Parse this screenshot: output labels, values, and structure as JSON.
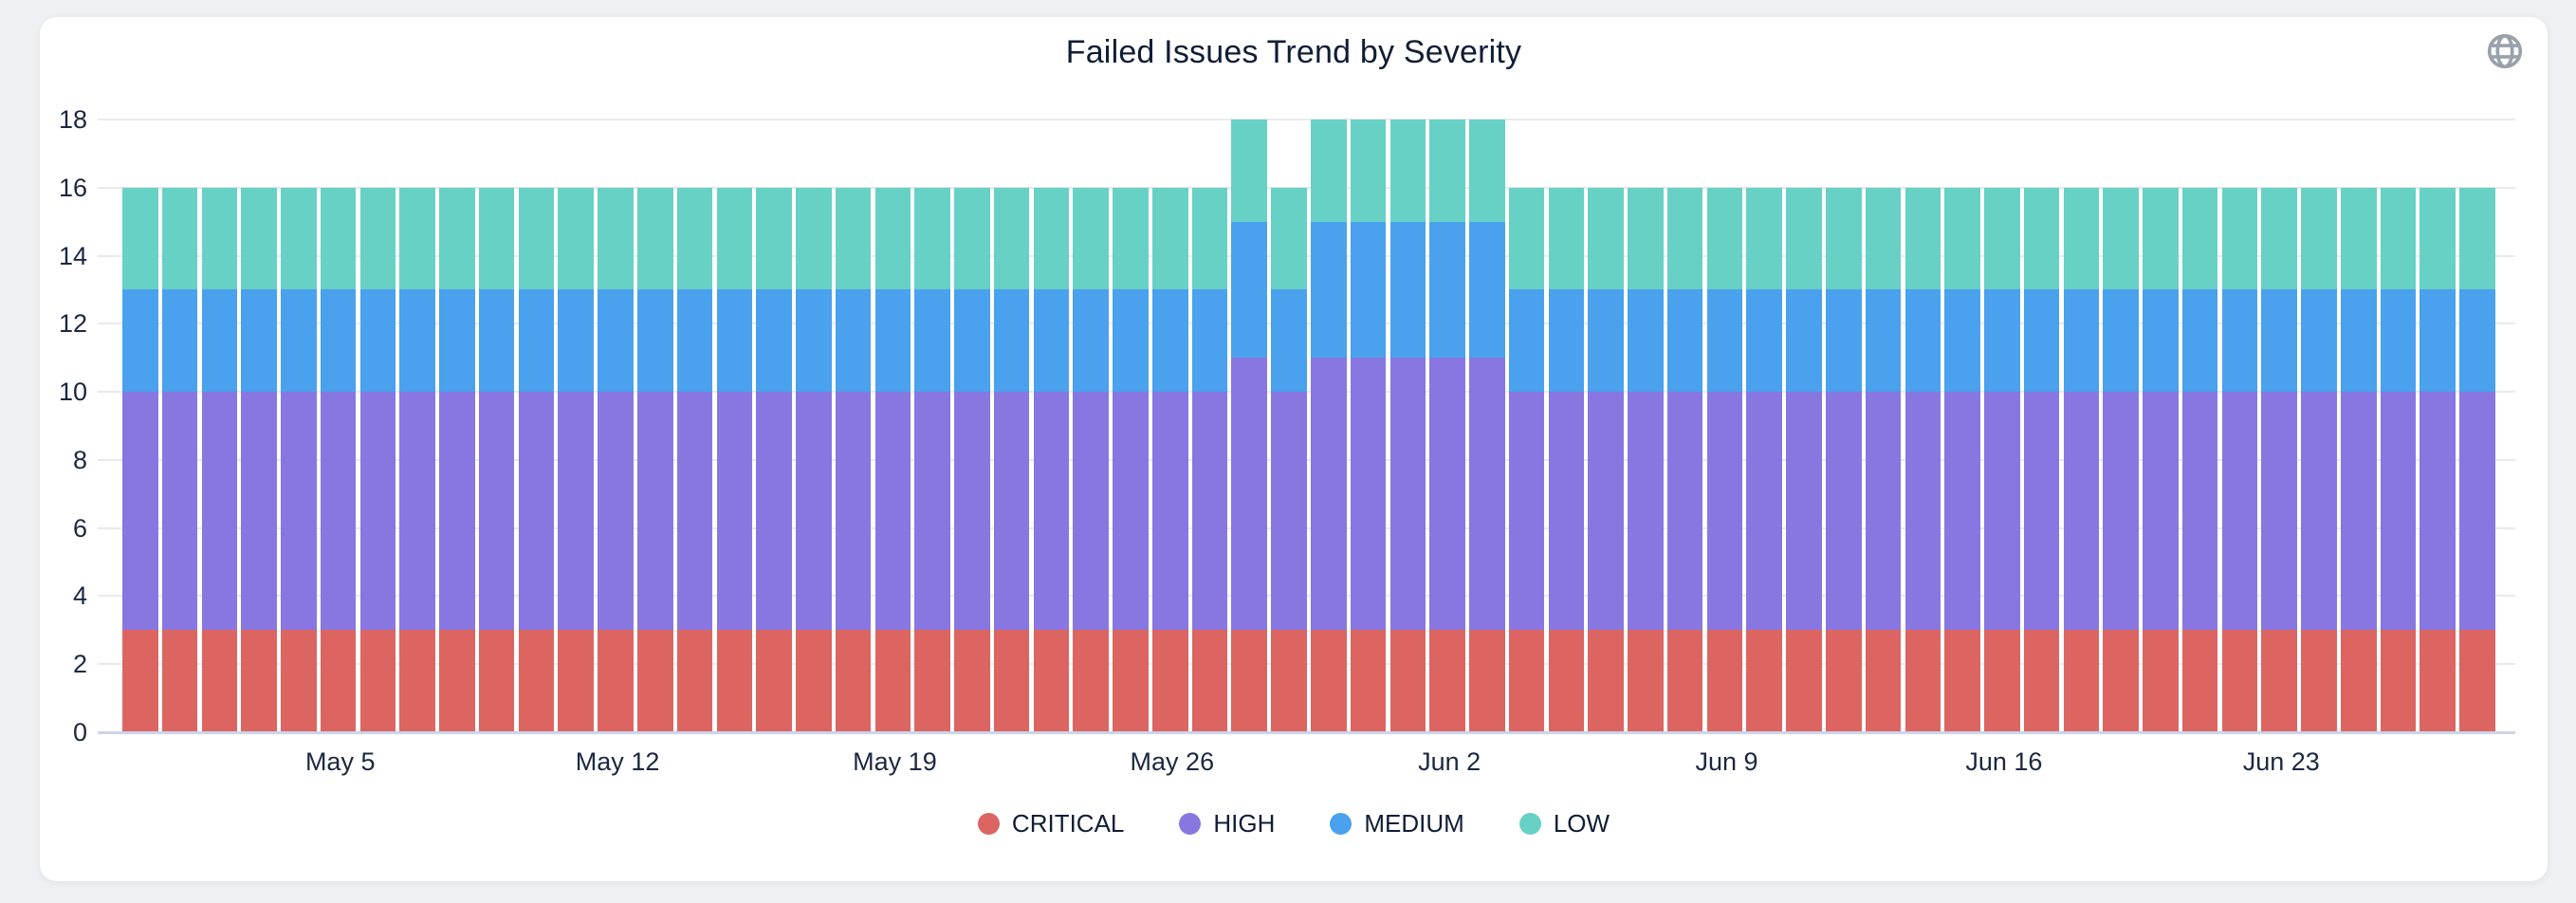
{
  "header": {
    "icon": "globe-icon",
    "icon_color": "#99a1ab"
  },
  "chart_data": {
    "type": "bar",
    "stacked": true,
    "title": "Failed Issues Trend by Severity",
    "title_color": "#101d35",
    "categories": [
      "Apr 30",
      "May 1",
      "May 2",
      "May 3",
      "May 4",
      "May 5",
      "May 6",
      "May 7",
      "May 8",
      "May 9",
      "May 10",
      "May 11",
      "May 12",
      "May 13",
      "May 14",
      "May 15",
      "May 16",
      "May 17",
      "May 18",
      "May 19",
      "May 20",
      "May 21",
      "May 22",
      "May 23",
      "May 24",
      "May 25",
      "May 26",
      "May 27",
      "May 28",
      "May 29",
      "May 30",
      "May 31",
      "Jun 1",
      "Jun 2",
      "Jun 3",
      "Jun 4",
      "Jun 5",
      "Jun 6",
      "Jun 7",
      "Jun 8",
      "Jun 9",
      "Jun 10",
      "Jun 11",
      "Jun 12",
      "Jun 13",
      "Jun 14",
      "Jun 15",
      "Jun 16",
      "Jun 17",
      "Jun 18",
      "Jun 19",
      "Jun 20",
      "Jun 21",
      "Jun 22",
      "Jun 23",
      "Jun 24",
      "Jun 25",
      "Jun 26",
      "Jun 27",
      "Jun 28"
    ],
    "x_ticks": [
      {
        "index": 5,
        "label": "May 5"
      },
      {
        "index": 12,
        "label": "May 12"
      },
      {
        "index": 19,
        "label": "May 19"
      },
      {
        "index": 26,
        "label": "May 26"
      },
      {
        "index": 33,
        "label": "Jun 2"
      },
      {
        "index": 40,
        "label": "Jun 9"
      },
      {
        "index": 47,
        "label": "Jun 16"
      },
      {
        "index": 54,
        "label": "Jun 23"
      }
    ],
    "series": [
      {
        "name": "CRITICAL",
        "color": "#dc6562",
        "values": [
          3,
          3,
          3,
          3,
          3,
          3,
          3,
          3,
          3,
          3,
          3,
          3,
          3,
          3,
          3,
          3,
          3,
          3,
          3,
          3,
          3,
          3,
          3,
          3,
          3,
          3,
          3,
          3,
          3,
          3,
          3,
          3,
          3,
          3,
          3,
          3,
          3,
          3,
          3,
          3,
          3,
          3,
          3,
          3,
          3,
          3,
          3,
          3,
          3,
          3,
          3,
          3,
          3,
          3,
          3,
          3,
          3,
          3,
          3,
          3
        ]
      },
      {
        "name": "HIGH",
        "color": "#8977e1",
        "values": [
          7,
          7,
          7,
          7,
          7,
          7,
          7,
          7,
          7,
          7,
          7,
          7,
          7,
          7,
          7,
          7,
          7,
          7,
          7,
          7,
          7,
          7,
          7,
          7,
          7,
          7,
          7,
          7,
          8,
          7,
          8,
          8,
          8,
          8,
          8,
          7,
          7,
          7,
          7,
          7,
          7,
          7,
          7,
          7,
          7,
          7,
          7,
          7,
          7,
          7,
          7,
          7,
          7,
          7,
          7,
          7,
          7,
          7,
          7,
          7
        ]
      },
      {
        "name": "MEDIUM",
        "color": "#4aa1ed",
        "values": [
          3,
          3,
          3,
          3,
          3,
          3,
          3,
          3,
          3,
          3,
          3,
          3,
          3,
          3,
          3,
          3,
          3,
          3,
          3,
          3,
          3,
          3,
          3,
          3,
          3,
          3,
          3,
          3,
          4,
          3,
          4,
          4,
          4,
          4,
          4,
          3,
          3,
          3,
          3,
          3,
          3,
          3,
          3,
          3,
          3,
          3,
          3,
          3,
          3,
          3,
          3,
          3,
          3,
          3,
          3,
          3,
          3,
          3,
          3,
          3
        ]
      },
      {
        "name": "LOW",
        "color": "#67d1c5",
        "values": [
          3,
          3,
          3,
          3,
          3,
          3,
          3,
          3,
          3,
          3,
          3,
          3,
          3,
          3,
          3,
          3,
          3,
          3,
          3,
          3,
          3,
          3,
          3,
          3,
          3,
          3,
          3,
          3,
          3,
          3,
          3,
          3,
          3,
          3,
          3,
          3,
          3,
          3,
          3,
          3,
          3,
          3,
          3,
          3,
          3,
          3,
          3,
          3,
          3,
          3,
          3,
          3,
          3,
          3,
          3,
          3,
          3,
          3,
          3,
          3
        ]
      }
    ],
    "ylim": [
      0,
      18
    ],
    "y_ticks": [
      0,
      2,
      4,
      6,
      8,
      10,
      12,
      14,
      16,
      18
    ],
    "grid": "horizontal",
    "legend_position": "bottom",
    "colors": {
      "gridline": "#e9e9ed",
      "baseline": "#ccd4ea",
      "axis_text": "#1b2840",
      "card_background": "#ffffff",
      "page_background": "#eef0f3"
    }
  }
}
